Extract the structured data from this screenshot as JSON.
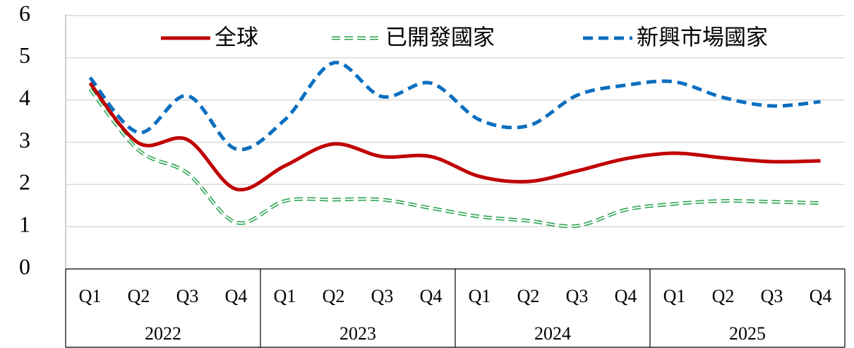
{
  "chart_data": {
    "type": "line",
    "categories": [
      "Q1",
      "Q2",
      "Q3",
      "Q4",
      "Q1",
      "Q2",
      "Q3",
      "Q4",
      "Q1",
      "Q2",
      "Q3",
      "Q4",
      "Q1",
      "Q2",
      "Q3",
      "Q4"
    ],
    "groups": [
      "2022",
      "2023",
      "2024",
      "2025"
    ],
    "series": [
      {
        "name": "全球",
        "color": "#c00000",
        "line_style": "solid",
        "values": [
          4.4,
          2.98,
          3.06,
          1.89,
          2.44,
          2.96,
          2.66,
          2.66,
          2.19,
          2.07,
          2.32,
          2.61,
          2.74,
          2.63,
          2.54,
          2.56
        ]
      },
      {
        "name": "已開發國家",
        "color": "#22a04a",
        "line_style": "hollow-dashed",
        "values": [
          4.26,
          2.81,
          2.27,
          1.1,
          1.61,
          1.64,
          1.64,
          1.44,
          1.24,
          1.14,
          1.02,
          1.4,
          1.54,
          1.61,
          1.59,
          1.56
        ]
      },
      {
        "name": "新興市場國家",
        "color": "#0b6fc0",
        "line_style": "dashed",
        "values": [
          4.53,
          3.23,
          4.1,
          2.84,
          3.53,
          4.88,
          4.08,
          4.4,
          3.53,
          3.39,
          4.11,
          4.35,
          4.43,
          4.06,
          3.86,
          3.96
        ]
      }
    ],
    "ylim": [
      0,
      6
    ],
    "yticks": [
      0,
      1,
      2,
      3,
      4,
      5,
      6
    ],
    "grid": true,
    "legend": "top"
  }
}
